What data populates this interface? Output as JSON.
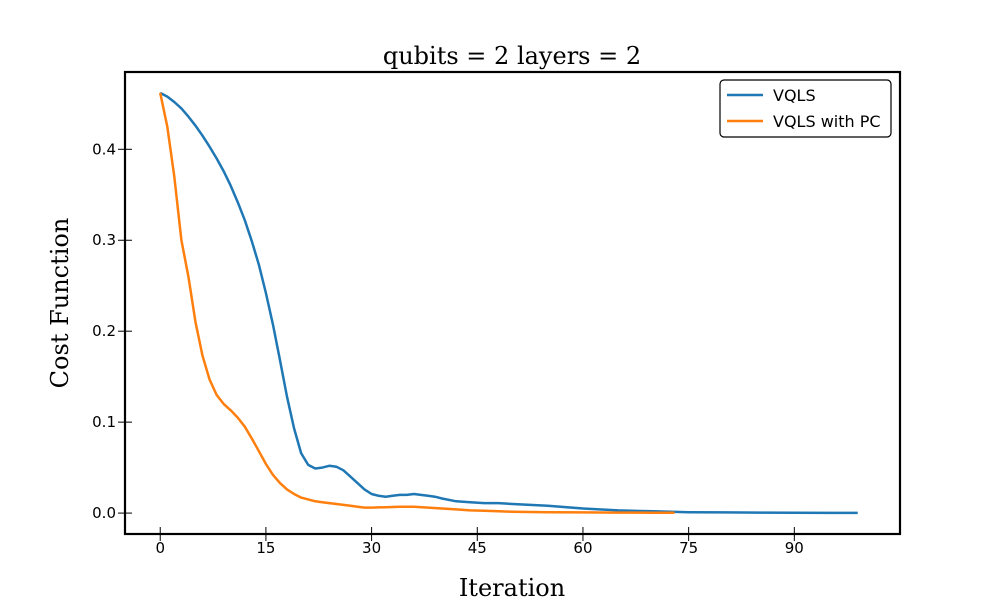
{
  "chart_data": {
    "type": "line",
    "title": "qubits = 2    layers = 2",
    "xlabel": "Iteration",
    "ylabel": "Cost Function",
    "xlim": [
      -5,
      105
    ],
    "ylim": [
      -0.023,
      0.485
    ],
    "xticks": [
      0,
      15,
      30,
      45,
      60,
      75,
      90
    ],
    "yticks": [
      0.0,
      0.1,
      0.2,
      0.3,
      0.4
    ],
    "ytick_labels": [
      "0.0",
      "0.1",
      "0.2",
      "0.3",
      "0.4"
    ],
    "grid": false,
    "legend": "top-right",
    "series": [
      {
        "name": "VQLS",
        "color": "#1f77b4",
        "x": [
          0,
          1,
          2,
          3,
          4,
          5,
          6,
          7,
          8,
          9,
          10,
          11,
          12,
          13,
          14,
          15,
          16,
          17,
          18,
          19,
          20,
          21,
          22,
          23,
          24,
          25,
          26,
          27,
          28,
          29,
          30,
          31,
          32,
          33,
          34,
          35,
          36,
          37,
          38,
          39,
          40,
          42,
          44,
          46,
          48,
          50,
          55,
          60,
          65,
          70,
          75,
          80,
          85,
          90,
          95,
          99
        ],
        "y": [
          0.462,
          0.458,
          0.452,
          0.445,
          0.436,
          0.426,
          0.415,
          0.403,
          0.39,
          0.376,
          0.36,
          0.342,
          0.322,
          0.299,
          0.273,
          0.242,
          0.207,
          0.168,
          0.128,
          0.093,
          0.066,
          0.053,
          0.049,
          0.05,
          0.052,
          0.051,
          0.047,
          0.04,
          0.033,
          0.026,
          0.021,
          0.019,
          0.018,
          0.019,
          0.02,
          0.02,
          0.021,
          0.02,
          0.019,
          0.018,
          0.016,
          0.013,
          0.012,
          0.011,
          0.011,
          0.01,
          0.008,
          0.005,
          0.003,
          0.002,
          0.001,
          0.0007,
          0.0005,
          0.0003,
          0.0002,
          0.0002
        ]
      },
      {
        "name": "VQLS with PC",
        "color": "#ff7f0e",
        "x": [
          0,
          1,
          2,
          3,
          4,
          5,
          6,
          7,
          8,
          9,
          10,
          11,
          12,
          13,
          14,
          15,
          16,
          17,
          18,
          19,
          20,
          21,
          22,
          23,
          24,
          25,
          26,
          27,
          28,
          29,
          30,
          32,
          34,
          36,
          38,
          40,
          42,
          44,
          46,
          48,
          50,
          55,
          60,
          65,
          70,
          73
        ],
        "y": [
          0.462,
          0.425,
          0.37,
          0.3,
          0.26,
          0.21,
          0.173,
          0.147,
          0.13,
          0.12,
          0.113,
          0.105,
          0.095,
          0.082,
          0.068,
          0.054,
          0.042,
          0.033,
          0.026,
          0.021,
          0.017,
          0.015,
          0.013,
          0.012,
          0.011,
          0.01,
          0.009,
          0.008,
          0.007,
          0.006,
          0.006,
          0.0065,
          0.007,
          0.007,
          0.006,
          0.005,
          0.004,
          0.003,
          0.0025,
          0.002,
          0.0015,
          0.001,
          0.0007,
          0.0005,
          0.0004,
          0.0003
        ]
      }
    ]
  }
}
